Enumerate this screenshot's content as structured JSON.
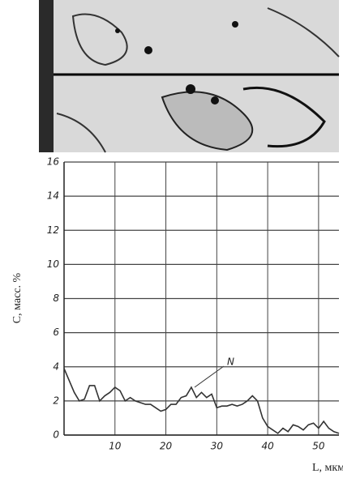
{
  "chart_data": {
    "type": "line",
    "x_label": "L, мкм",
    "y_label": "C, масс. %",
    "annotation": "N",
    "x": [
      0,
      1,
      2,
      3,
      4,
      5,
      6,
      7,
      8,
      9,
      10,
      11,
      12,
      13,
      14,
      15,
      16,
      17,
      18,
      19,
      20,
      21,
      22,
      23,
      24,
      25,
      26,
      27,
      28,
      29,
      30,
      31,
      32,
      33,
      34,
      35,
      36,
      37,
      38,
      39,
      40,
      41,
      42,
      43,
      44,
      45,
      46,
      47,
      48,
      49,
      50,
      51,
      52,
      53,
      54
    ],
    "series": [
      {
        "color": "#333333",
        "values": [
          3.9,
          3.2,
          2.5,
          2.0,
          2.1,
          2.9,
          2.9,
          2.0,
          2.3,
          2.5,
          2.8,
          2.6,
          2.0,
          2.2,
          2.0,
          1.9,
          1.8,
          1.8,
          1.6,
          1.4,
          1.5,
          1.8,
          1.8,
          2.2,
          2.3,
          2.8,
          2.2,
          2.5,
          2.2,
          2.4,
          1.6,
          1.7,
          1.7,
          1.8,
          1.7,
          1.8,
          2.0,
          2.3,
          2.0,
          1.0,
          0.5,
          0.3,
          0.1,
          0.4,
          0.2,
          0.6,
          0.5,
          0.3,
          0.6,
          0.7,
          0.4,
          0.8,
          0.4,
          0.2,
          0.1
        ]
      }
    ],
    "xlim": [
      0,
      54
    ],
    "xticks": [
      10,
      20,
      30,
      40,
      50
    ],
    "ylim": [
      0,
      16
    ],
    "yticks": [
      0,
      2,
      4,
      6,
      8,
      10,
      12,
      14,
      16
    ],
    "grid": true
  }
}
